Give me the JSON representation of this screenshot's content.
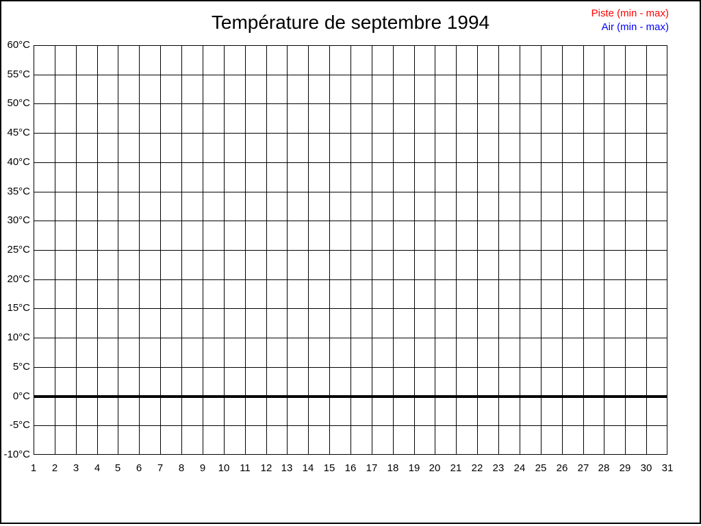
{
  "title": "Température de septembre 1994",
  "legend": {
    "items": [
      {
        "label": "Piste (min - max)",
        "color": "#ff0000"
      },
      {
        "label": "Air (min - max)",
        "color": "#0000ff"
      }
    ]
  },
  "chart_data": {
    "type": "line",
    "title": "Température de septembre 1994",
    "xlabel": "",
    "ylabel": "",
    "x_ticks": [
      "1",
      "2",
      "3",
      "4",
      "5",
      "6",
      "7",
      "8",
      "9",
      "10",
      "11",
      "12",
      "13",
      "14",
      "15",
      "16",
      "17",
      "18",
      "19",
      "20",
      "21",
      "22",
      "23",
      "24",
      "25",
      "26",
      "27",
      "28",
      "29",
      "30",
      "31"
    ],
    "y_ticks": [
      "60°C",
      "55°C",
      "50°C",
      "45°C",
      "40°C",
      "35°C",
      "30°C",
      "25°C",
      "20°C",
      "15°C",
      "10°C",
      "5°C",
      "0°C",
      "-5°C",
      "-10°C"
    ],
    "y_min": -10,
    "y_max": 60,
    "y_step": 5,
    "x_min": 1,
    "x_max": 31,
    "grid": true,
    "legend_position": "top-right",
    "series": [
      {
        "name": "Piste (min - max)",
        "color": "#ff0000",
        "values": []
      },
      {
        "name": "Air (min - max)",
        "color": "#0000ff",
        "values": []
      }
    ],
    "zero_line": {
      "value": 0,
      "color": "#000000",
      "thickness_px": 4
    }
  }
}
